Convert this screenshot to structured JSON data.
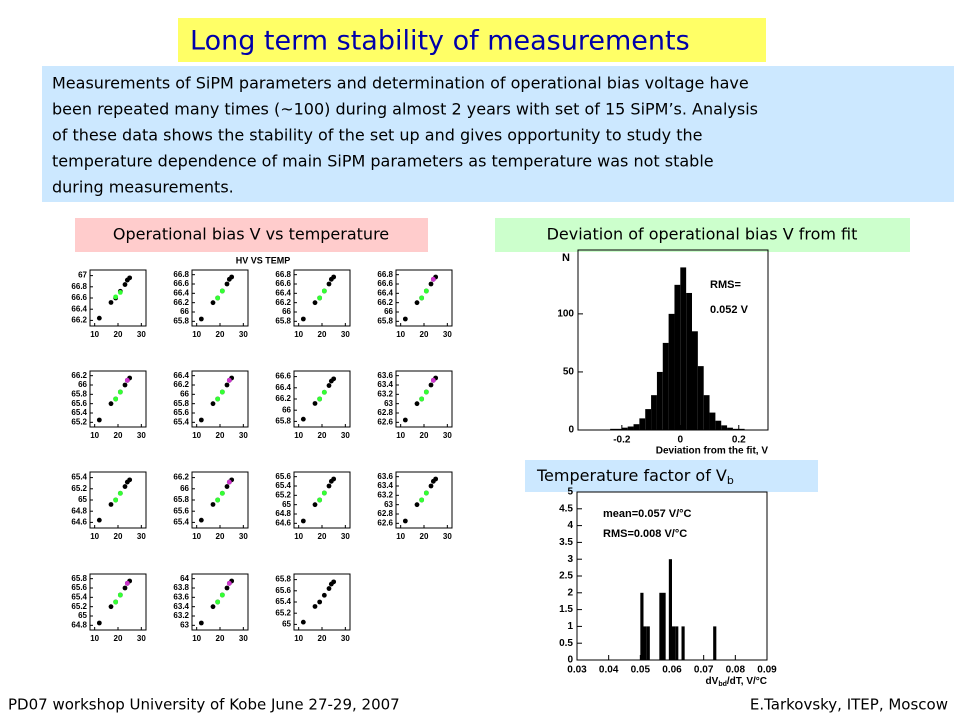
{
  "title": "Long term stability of measurements",
  "paragraph": [
    "Measurements of SiPM parameters and determination of operational bias voltage have",
    "been repeated many times (~100) during almost 2 years with set of 15 SiPM’s. Analysis",
    "of these data shows the stability of the set up and gives opportunity to study the",
    "temperature dependence of main SiPM parameters as temperature was not stable",
    "during measurements."
  ],
  "label_left": "Operational bias V vs temperature",
  "label_right": "Deviation of operational bias V from fit",
  "temp_label": "Temperature factor of V",
  "temp_label_sub": "b",
  "scatter_title": "HV VS TEMP",
  "footer_left": "PD07 workshop   University of Kobe   June  27-29, 2007",
  "footer_right": "E.Tarkovsky, ITEP, Moscow",
  "chart_data": [
    {
      "type": "scatter",
      "xlim": [
        8,
        32
      ],
      "xticks": [
        10,
        20,
        30
      ],
      "ylim": [
        66.1,
        67.1
      ],
      "yticks": [
        67,
        66.8,
        66.6,
        66.4,
        66.2
      ],
      "series": [
        {
          "color": "#000000",
          "x": [
            12,
            17,
            19,
            21,
            23,
            24,
            25
          ],
          "values": [
            66.24,
            66.52,
            66.6,
            66.72,
            66.84,
            66.92,
            66.96
          ]
        },
        {
          "color": "#33ff33",
          "x": [
            19,
            21
          ],
          "values": [
            66.62,
            66.7
          ]
        }
      ]
    },
    {
      "type": "scatter",
      "xlim": [
        8,
        32
      ],
      "xticks": [
        10,
        20,
        30
      ],
      "ylim": [
        65.7,
        66.9
      ],
      "yticks": [
        66.8,
        66.6,
        66.4,
        66.2,
        66,
        65.8
      ],
      "series": [
        {
          "color": "#000000",
          "x": [
            12,
            17,
            19,
            21,
            23,
            24,
            25
          ],
          "values": [
            65.85,
            66.2,
            66.3,
            66.45,
            66.6,
            66.7,
            66.75
          ]
        },
        {
          "color": "#33ff33",
          "x": [
            19,
            21
          ],
          "values": [
            66.3,
            66.45
          ]
        }
      ]
    },
    {
      "type": "scatter",
      "xlim": [
        8,
        32
      ],
      "xticks": [
        10,
        20,
        30
      ],
      "ylim": [
        65.7,
        66.9
      ],
      "yticks": [
        66.8,
        66.6,
        66.4,
        66.2,
        66,
        65.8
      ],
      "series": [
        {
          "color": "#000000",
          "x": [
            12,
            17,
            19,
            21,
            23,
            24,
            25
          ],
          "values": [
            65.85,
            66.2,
            66.3,
            66.45,
            66.6,
            66.7,
            66.75
          ]
        },
        {
          "color": "#33ff33",
          "x": [
            19,
            21
          ],
          "values": [
            66.3,
            66.45
          ]
        }
      ]
    },
    {
      "type": "scatter",
      "xlim": [
        8,
        32
      ],
      "xticks": [
        10,
        20,
        30
      ],
      "ylim": [
        65.7,
        66.9
      ],
      "yticks": [
        66.8,
        66.6,
        66.4,
        66.2,
        66,
        65.8
      ],
      "series": [
        {
          "color": "#000000",
          "x": [
            12,
            17,
            19,
            21,
            23,
            24,
            25
          ],
          "values": [
            65.85,
            66.2,
            66.3,
            66.45,
            66.6,
            66.7,
            66.75
          ]
        },
        {
          "color": "#33ff33",
          "x": [
            19,
            21
          ],
          "values": [
            66.3,
            66.45
          ]
        },
        {
          "color": "#cc33cc",
          "x": [
            24
          ],
          "values": [
            66.7
          ]
        }
      ]
    },
    {
      "type": "scatter",
      "xlim": [
        8,
        32
      ],
      "xticks": [
        10,
        20,
        30
      ],
      "ylim": [
        65.1,
        66.3
      ],
      "yticks": [
        66.2,
        66,
        65.8,
        65.6,
        65.4,
        65.2
      ],
      "series": [
        {
          "color": "#000000",
          "x": [
            12,
            17,
            19,
            21,
            23,
            24,
            25
          ],
          "values": [
            65.25,
            65.6,
            65.7,
            65.85,
            66,
            66.1,
            66.15
          ]
        },
        {
          "color": "#33ff33",
          "x": [
            19,
            21
          ],
          "values": [
            65.7,
            65.85
          ]
        },
        {
          "color": "#cc33cc",
          "x": [
            24
          ],
          "values": [
            66.1
          ]
        }
      ]
    },
    {
      "type": "scatter",
      "xlim": [
        8,
        32
      ],
      "xticks": [
        10,
        20,
        30
      ],
      "ylim": [
        65.3,
        66.5
      ],
      "yticks": [
        66.4,
        66.2,
        66,
        65.8,
        65.6,
        65.4
      ],
      "series": [
        {
          "color": "#000000",
          "x": [
            12,
            17,
            19,
            21,
            23,
            24,
            25
          ],
          "values": [
            65.45,
            65.8,
            65.9,
            66.05,
            66.2,
            66.3,
            66.35
          ]
        },
        {
          "color": "#33ff33",
          "x": [
            19,
            21
          ],
          "values": [
            65.9,
            66.05
          ]
        },
        {
          "color": "#cc33cc",
          "x": [
            24
          ],
          "values": [
            66.3
          ]
        }
      ]
    },
    {
      "type": "scatter",
      "xlim": [
        8,
        32
      ],
      "xticks": [
        10,
        20,
        30
      ],
      "ylim": [
        65.7,
        66.7
      ],
      "yticks": [
        66.6,
        66.4,
        66.2,
        66,
        65.8
      ],
      "series": [
        {
          "color": "#000000",
          "x": [
            12,
            17,
            19,
            21,
            23,
            24,
            25
          ],
          "values": [
            65.84,
            66.12,
            66.2,
            66.32,
            66.44,
            66.52,
            66.56
          ]
        },
        {
          "color": "#33ff33",
          "x": [
            19,
            21
          ],
          "values": [
            66.2,
            66.32
          ]
        }
      ]
    },
    {
      "type": "scatter",
      "xlim": [
        8,
        32
      ],
      "xticks": [
        10,
        20,
        30
      ],
      "ylim": [
        62.5,
        63.7
      ],
      "yticks": [
        63.6,
        63.4,
        63.2,
        63,
        62.8,
        62.6
      ],
      "series": [
        {
          "color": "#000000",
          "x": [
            12,
            17,
            19,
            21,
            23,
            24,
            25
          ],
          "values": [
            62.65,
            63,
            63.1,
            63.25,
            63.4,
            63.5,
            63.55
          ]
        },
        {
          "color": "#33ff33",
          "x": [
            19,
            21
          ],
          "values": [
            63.1,
            63.25
          ]
        },
        {
          "color": "#cc33cc",
          "x": [
            24
          ],
          "values": [
            63.5
          ]
        }
      ]
    },
    {
      "type": "scatter",
      "xlim": [
        8,
        32
      ],
      "xticks": [
        10,
        20,
        30
      ],
      "ylim": [
        64.5,
        65.5
      ],
      "yticks": [
        65.4,
        65.2,
        65,
        64.8,
        64.6
      ],
      "series": [
        {
          "color": "#000000",
          "x": [
            12,
            17,
            19,
            21,
            23,
            24,
            25
          ],
          "values": [
            64.64,
            64.92,
            65,
            65.12,
            65.24,
            65.32,
            65.36
          ]
        },
        {
          "color": "#33ff33",
          "x": [
            19,
            21
          ],
          "values": [
            65,
            65.12
          ]
        }
      ]
    },
    {
      "type": "scatter",
      "xlim": [
        8,
        32
      ],
      "xticks": [
        10,
        20,
        30
      ],
      "ylim": [
        65.3,
        66.3
      ],
      "yticks": [
        66.2,
        66,
        65.8,
        65.6,
        65.4
      ],
      "series": [
        {
          "color": "#000000",
          "x": [
            12,
            17,
            19,
            21,
            23,
            24,
            25
          ],
          "values": [
            65.44,
            65.72,
            65.8,
            65.92,
            66.04,
            66.12,
            66.16
          ]
        },
        {
          "color": "#33ff33",
          "x": [
            19,
            21
          ],
          "values": [
            65.8,
            65.92
          ]
        },
        {
          "color": "#cc33cc",
          "x": [
            24
          ],
          "values": [
            66.12
          ]
        }
      ]
    },
    {
      "type": "scatter",
      "xlim": [
        8,
        32
      ],
      "xticks": [
        10,
        20,
        30
      ],
      "ylim": [
        64.5,
        65.7
      ],
      "yticks": [
        65.6,
        65.4,
        65.2,
        65,
        64.8,
        64.6
      ],
      "series": [
        {
          "color": "#000000",
          "x": [
            12,
            17,
            19,
            21,
            23,
            24,
            25
          ],
          "values": [
            64.65,
            65,
            65.1,
            65.25,
            65.4,
            65.5,
            65.55
          ]
        },
        {
          "color": "#33ff33",
          "x": [
            19,
            21
          ],
          "values": [
            65.1,
            65.25
          ]
        }
      ]
    },
    {
      "type": "scatter",
      "xlim": [
        8,
        32
      ],
      "xticks": [
        10,
        20,
        30
      ],
      "ylim": [
        62.5,
        63.7
      ],
      "yticks": [
        63.6,
        63.4,
        63.2,
        63,
        62.8,
        62.6
      ],
      "series": [
        {
          "color": "#000000",
          "x": [
            12,
            17,
            19,
            21,
            23,
            24,
            25
          ],
          "values": [
            62.65,
            63,
            63.1,
            63.25,
            63.4,
            63.5,
            63.55
          ]
        },
        {
          "color": "#33ff33",
          "x": [
            19,
            21
          ],
          "values": [
            63.1,
            63.25
          ]
        }
      ]
    },
    {
      "type": "scatter",
      "xlim": [
        8,
        32
      ],
      "xticks": [
        10,
        20,
        30
      ],
      "ylim": [
        64.7,
        65.9
      ],
      "yticks": [
        65.8,
        65.6,
        65.4,
        65.2,
        65,
        64.8
      ],
      "series": [
        {
          "color": "#000000",
          "x": [
            12,
            17,
            19,
            21,
            23,
            24,
            25
          ],
          "values": [
            64.85,
            65.2,
            65.3,
            65.45,
            65.6,
            65.7,
            65.75
          ]
        },
        {
          "color": "#33ff33",
          "x": [
            19,
            21
          ],
          "values": [
            65.3,
            65.45
          ]
        },
        {
          "color": "#cc33cc",
          "x": [
            24
          ],
          "values": [
            65.7
          ]
        }
      ]
    },
    {
      "type": "scatter",
      "xlim": [
        8,
        32
      ],
      "xticks": [
        10,
        20,
        30
      ],
      "ylim": [
        62.9,
        64.1
      ],
      "yticks": [
        64,
        63.8,
        63.6,
        63.4,
        63.2,
        63
      ],
      "series": [
        {
          "color": "#000000",
          "x": [
            12,
            17,
            19,
            21,
            23,
            24,
            25
          ],
          "values": [
            63.05,
            63.4,
            63.5,
            63.65,
            63.8,
            63.9,
            63.95
          ]
        },
        {
          "color": "#33ff33",
          "x": [
            19,
            21
          ],
          "values": [
            63.5,
            63.65
          ]
        },
        {
          "color": "#cc33cc",
          "x": [
            24
          ],
          "values": [
            63.9
          ]
        }
      ]
    },
    {
      "type": "scatter",
      "xlim": [
        8,
        32
      ],
      "xticks": [
        10,
        20,
        30
      ],
      "ylim": [
        64.9,
        65.9
      ],
      "yticks": [
        65.8,
        65.6,
        65.4,
        65.2,
        65
      ],
      "series": [
        {
          "color": "#000000",
          "x": [
            12,
            17,
            19,
            21,
            23,
            24,
            25
          ],
          "values": [
            65.04,
            65.32,
            65.4,
            65.52,
            65.64,
            65.72,
            65.76
          ]
        }
      ]
    },
    {
      "type": "histogram",
      "x_label": "Deviation from the fit, V",
      "y_label": "N",
      "annotations": [
        "RMS=",
        "0.052 V"
      ],
      "color": "#000000",
      "xlim": [
        -0.35,
        0.3
      ],
      "xticks": [
        -0.2,
        0,
        0.2
      ],
      "ylim": [
        0,
        155
      ],
      "yticks": [
        0,
        50,
        100
      ],
      "bins": [
        -0.24,
        -0.22,
        -0.2,
        -0.18,
        -0.16,
        -0.14,
        -0.12,
        -0.1,
        -0.08,
        -0.06,
        -0.04,
        -0.02,
        0,
        0.02,
        0.04,
        0.06,
        0.08,
        0.1,
        0.12,
        0.14,
        0.16,
        0.18,
        0.2,
        0.22,
        0.24
      ],
      "values": [
        1,
        1,
        2,
        3,
        5,
        10,
        18,
        30,
        50,
        75,
        100,
        125,
        140,
        118,
        85,
        55,
        30,
        15,
        8,
        4,
        2,
        1,
        1,
        0
      ]
    },
    {
      "type": "histogram",
      "x_label": "dV",
      "x_label_sub": "bd",
      "x_label_rest": "/dT, V/°C",
      "annotations": [
        "mean=0.057 V/°C",
        "RMS=0.008 V/°C"
      ],
      "color": "#000000",
      "xlim": [
        0.03,
        0.09
      ],
      "xticks": [
        0.03,
        0.04,
        0.05,
        0.06,
        0.07,
        0.08,
        0.09
      ],
      "ylim": [
        0,
        5
      ],
      "yticks": [
        0,
        0.5,
        1,
        1.5,
        2,
        2.5,
        3,
        3.5,
        4,
        4.5,
        5
      ],
      "bins": [
        0.03,
        0.031,
        0.032,
        0.033,
        0.034,
        0.035,
        0.036,
        0.037,
        0.038,
        0.039,
        0.04,
        0.041,
        0.042,
        0.043,
        0.044,
        0.045,
        0.046,
        0.047,
        0.048,
        0.049,
        0.05,
        0.051,
        0.052,
        0.053,
        0.054,
        0.055,
        0.056,
        0.057,
        0.058,
        0.059,
        0.06,
        0.061,
        0.062,
        0.063,
        0.064,
        0.065,
        0.066,
        0.067,
        0.068,
        0.069,
        0.07,
        0.071,
        0.072,
        0.073,
        0.074,
        0.075,
        0.076,
        0.077,
        0.078,
        0.079,
        0.08,
        0.081,
        0.082,
        0.083,
        0.084,
        0.085,
        0.086,
        0.087,
        0.088,
        0.089,
        0.09
      ],
      "values": [
        0,
        0,
        0,
        0,
        0,
        0,
        0,
        0,
        0,
        0,
        0,
        0,
        0,
        0,
        0,
        0,
        0,
        0,
        0,
        0,
        2,
        1,
        1,
        0,
        0,
        0,
        2,
        2,
        0,
        3,
        1,
        1,
        0,
        1,
        0,
        0,
        0,
        0,
        0,
        0,
        0,
        0,
        0,
        1,
        0,
        0,
        0,
        0,
        0,
        0,
        0,
        0,
        0,
        0,
        0,
        0,
        0,
        0,
        0,
        0
      ]
    }
  ]
}
